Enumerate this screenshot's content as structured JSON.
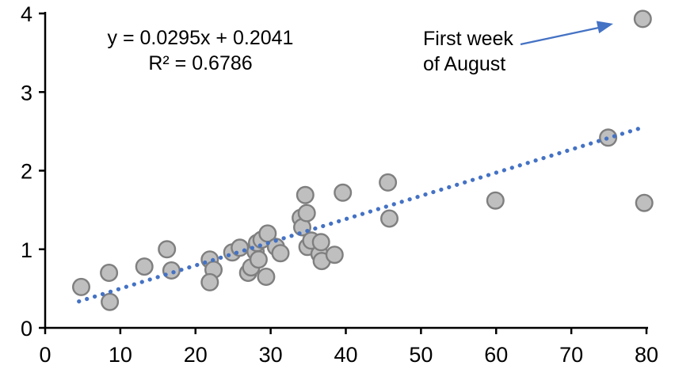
{
  "chart_data": {
    "type": "scatter",
    "title": "",
    "xlabel": "",
    "ylabel": "",
    "grid": "off",
    "legend": "none",
    "x_axis": {
      "min": 0,
      "max": 80,
      "ticks": [
        0,
        10,
        20,
        30,
        40,
        50,
        60,
        70,
        80
      ]
    },
    "y_axis": {
      "min": 0,
      "max": 4,
      "ticks": [
        0,
        1,
        2,
        3,
        4
      ]
    },
    "points": [
      [
        4.8,
        0.52
      ],
      [
        8.5,
        0.7
      ],
      [
        8.6,
        0.33
      ],
      [
        13.2,
        0.78
      ],
      [
        16.2,
        1.0
      ],
      [
        16.8,
        0.73
      ],
      [
        21.9,
        0.87
      ],
      [
        22.4,
        0.74
      ],
      [
        21.9,
        0.58
      ],
      [
        24.9,
        0.96
      ],
      [
        25.9,
        1.02
      ],
      [
        27.0,
        0.7
      ],
      [
        27.4,
        0.77
      ],
      [
        28.0,
        0.97
      ],
      [
        28.2,
        1.08
      ],
      [
        28.4,
        0.87
      ],
      [
        28.8,
        1.12
      ],
      [
        29.6,
        1.2
      ],
      [
        29.4,
        0.65
      ],
      [
        30.7,
        1.03
      ],
      [
        31.3,
        0.95
      ],
      [
        34.0,
        1.4
      ],
      [
        34.2,
        1.28
      ],
      [
        34.6,
        1.69
      ],
      [
        34.8,
        1.46
      ],
      [
        34.9,
        1.03
      ],
      [
        35.4,
        1.11
      ],
      [
        36.5,
        0.94
      ],
      [
        36.7,
        1.09
      ],
      [
        36.8,
        0.85
      ],
      [
        38.5,
        0.93
      ],
      [
        39.6,
        1.72
      ],
      [
        45.6,
        1.85
      ],
      [
        45.8,
        1.39
      ],
      [
        59.9,
        1.62
      ],
      [
        74.9,
        2.42
      ],
      [
        79.5,
        3.93
      ],
      [
        79.7,
        1.59
      ]
    ],
    "point_style": {
      "fill": "#BFBFBF",
      "stroke": "#7F7F7F"
    },
    "trendline": {
      "slope": 0.0295,
      "intercept": 0.2041,
      "x_start": 4.5,
      "x_end": 79.0,
      "style": "dotted",
      "color": "#4472C4"
    },
    "equation": {
      "line1": "y = 0.0295x + 0.2041",
      "line2": "R² = 0.6786"
    },
    "annotation": {
      "line1": "First week",
      "line2": "of August",
      "arrow_color": "#4472C4",
      "target_point": [
        79.5,
        3.93
      ]
    },
    "axis_color": "#000000",
    "text_color": "#000000"
  }
}
